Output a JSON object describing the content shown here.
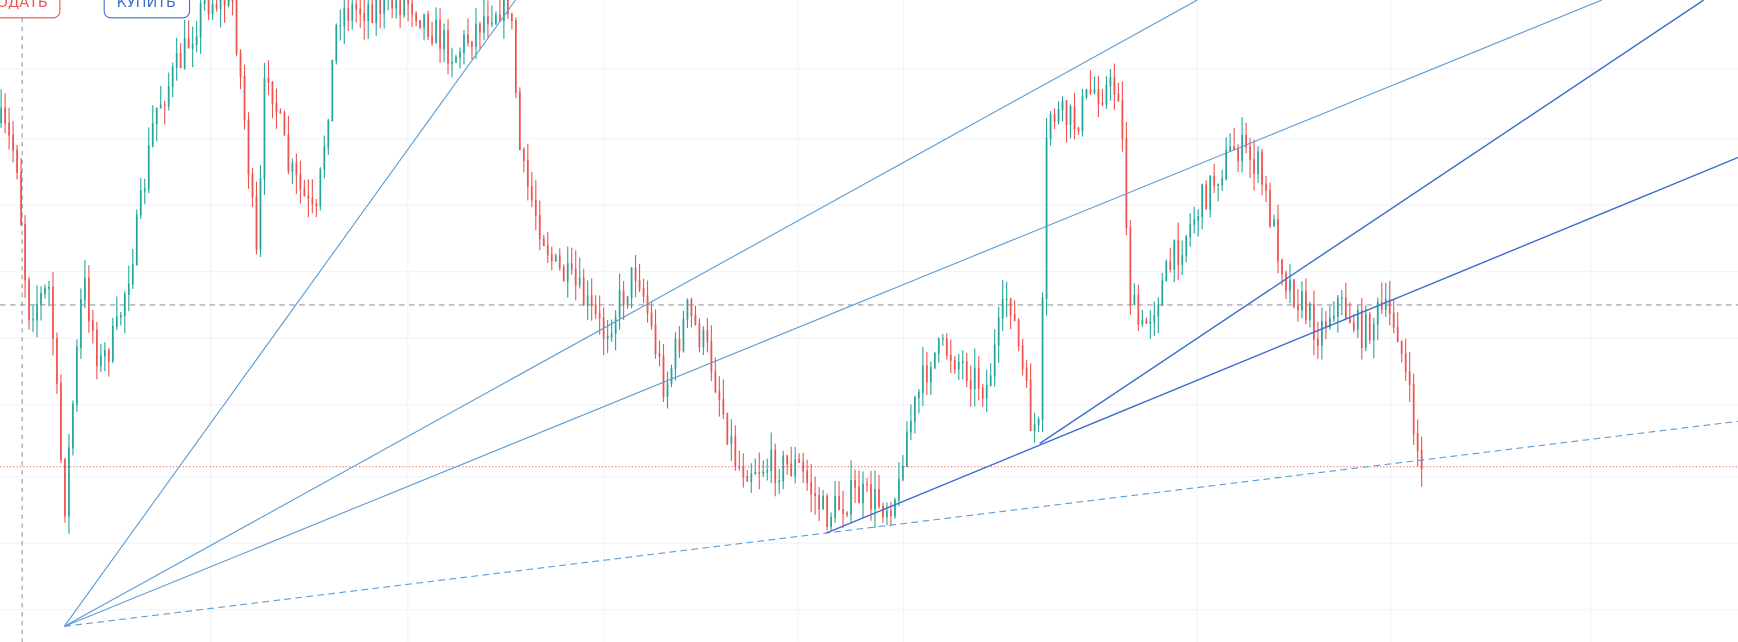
{
  "buttons": {
    "sell": "ОДАТЬ",
    "buy": "КУПИТЬ"
  }
}
